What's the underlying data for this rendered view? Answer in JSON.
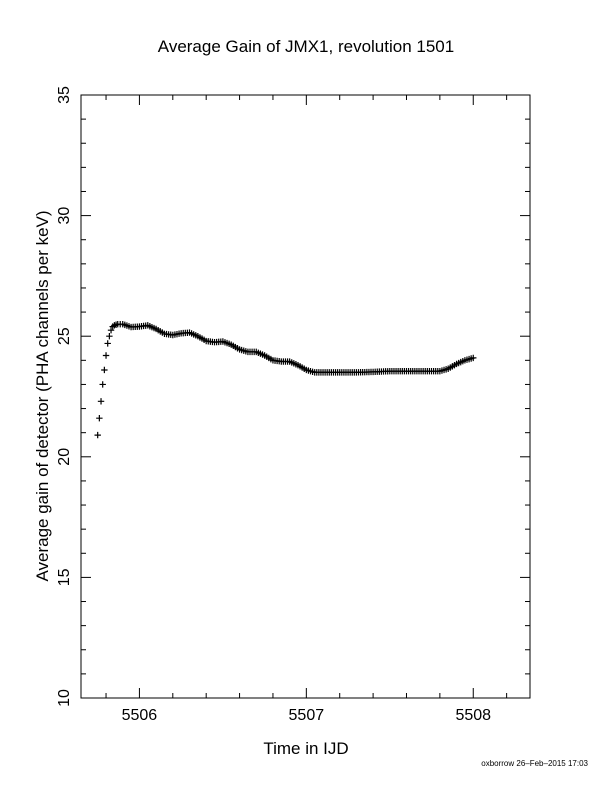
{
  "chart_data": {
    "type": "scatter",
    "marker": "+",
    "title": "Average Gain of JMX1, revolution 1501",
    "xlabel": "Time in IJD",
    "ylabel": "Average gain of detector (PHA channels per keV)",
    "xlim": [
      5505.65,
      5508.34
    ],
    "ylim": [
      10,
      35
    ],
    "xticks": [
      5506,
      5507,
      5508
    ],
    "yticks": [
      10,
      15,
      20,
      25,
      30,
      35
    ],
    "grid": false,
    "series": [
      {
        "color": "#000000",
        "x": [
          5505.75,
          5505.76,
          5505.77,
          5505.78,
          5505.79,
          5505.8,
          5505.81,
          5505.82,
          5505.83,
          5505.84,
          5505.85,
          5505.87,
          5505.9,
          5505.95,
          5506.0,
          5506.05,
          5506.1,
          5506.15,
          5506.2,
          5506.25,
          5506.3,
          5506.35,
          5506.4,
          5506.45,
          5506.5,
          5506.55,
          5506.6,
          5506.65,
          5506.7,
          5506.75,
          5506.8,
          5506.85,
          5506.9,
          5506.95,
          5507.0,
          5507.05,
          5507.1,
          5507.2,
          5507.3,
          5507.4,
          5507.5,
          5507.6,
          5507.7,
          5507.75,
          5507.8,
          5507.85,
          5507.9,
          5507.95,
          5508.0
        ],
        "y": [
          20.9,
          21.6,
          22.3,
          23.0,
          23.6,
          24.2,
          24.7,
          25.0,
          25.25,
          25.4,
          25.45,
          25.5,
          25.5,
          25.38,
          25.4,
          25.45,
          25.3,
          25.1,
          25.05,
          25.12,
          25.15,
          25.0,
          24.8,
          24.75,
          24.78,
          24.65,
          24.45,
          24.35,
          24.35,
          24.2,
          24.0,
          23.95,
          23.95,
          23.8,
          23.6,
          23.5,
          23.5,
          23.5,
          23.5,
          23.52,
          23.55,
          23.55,
          23.55,
          23.55,
          23.55,
          23.65,
          23.85,
          24.0,
          24.1
        ]
      }
    ]
  },
  "footer": "oxborrow 26–Feb–2015 17:03"
}
